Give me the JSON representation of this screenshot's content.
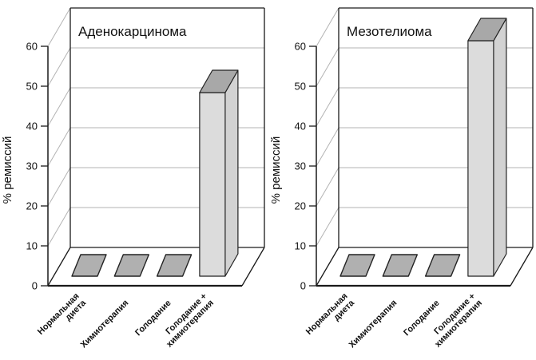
{
  "figure": {
    "background": "#ffffff",
    "panel_titles": [
      "Аденокарцинома",
      "Мезотелиома"
    ]
  },
  "colors": {
    "frame": "#1a1a1a",
    "grid": "#b3b3b3",
    "bar_flat": "#b0b0b0",
    "bar_front": "#dcdcdc",
    "bar_side": "#d2d2d2",
    "bar_top": "#a8a8a8",
    "bar_stroke": "#222222",
    "text": "#111111"
  },
  "chart_data": [
    {
      "type": "bar",
      "style": "3d-column",
      "title": "Аденокарцинома",
      "ylabel": "% ремиссий",
      "xlabel": "",
      "ylim": [
        0,
        60
      ],
      "yticks": [
        0,
        10,
        20,
        30,
        40,
        50,
        60
      ],
      "grid": true,
      "legend": false,
      "categories": [
        "Нормальная\nдиета",
        "Химиотерапия",
        "Голодание",
        "Голодание +\nхимиотерапия"
      ],
      "values": [
        0,
        0,
        0,
        46
      ]
    },
    {
      "type": "bar",
      "style": "3d-column",
      "title": "Мезотелиома",
      "ylabel": "% ремиссий",
      "xlabel": "",
      "ylim": [
        0,
        60
      ],
      "yticks": [
        0,
        10,
        20,
        30,
        40,
        50,
        60
      ],
      "grid": true,
      "legend": false,
      "categories": [
        "Нормальная\nдиета",
        "Химиотерапия",
        "Голодание",
        "Голодание +\nхимиотерапия"
      ],
      "values": [
        0,
        0,
        0,
        59
      ]
    }
  ]
}
